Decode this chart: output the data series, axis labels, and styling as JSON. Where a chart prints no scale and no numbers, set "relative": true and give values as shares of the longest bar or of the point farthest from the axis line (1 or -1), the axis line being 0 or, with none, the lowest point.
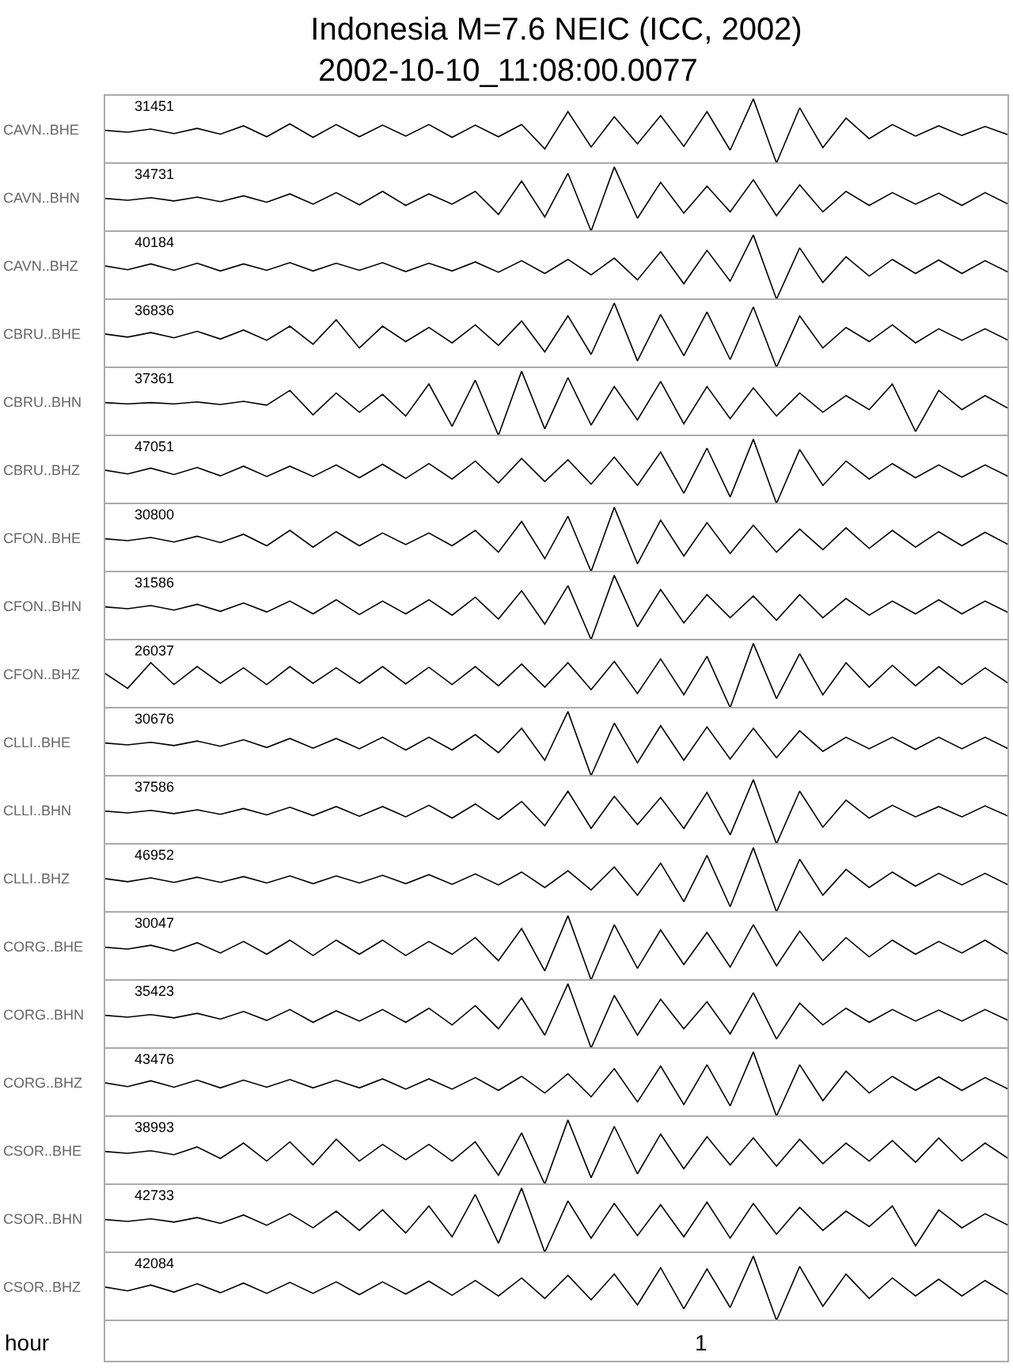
{
  "chart_data": [
    {
      "type": "line",
      "title": "Indonesia M=7.6 NEIC (ICC, 2002)",
      "subtitle": "2002-10-10_11:08:00.0077",
      "ylabel": "CAVN..BHE",
      "annotations": [
        "31451"
      ],
      "relative": true,
      "categories": [
        null,
        null,
        null,
        null,
        null,
        null,
        null,
        null,
        null,
        null,
        null,
        null,
        null,
        null,
        null,
        null,
        null,
        null,
        null,
        null,
        null,
        null,
        null,
        null,
        null,
        null,
        null,
        null,
        null,
        null,
        null,
        null,
        null,
        null,
        null,
        null,
        null,
        null,
        null,
        null
      ],
      "series": [
        {
          "color": "#000000",
          "values": [
            0.51,
            0.48,
            0.53,
            0.46,
            0.54,
            0.45,
            0.58,
            0.41,
            0.61,
            0.4,
            0.6,
            0.41,
            0.59,
            0.42,
            0.6,
            0.4,
            0.59,
            0.41,
            0.6,
            0.22,
            0.8,
            0.25,
            0.72,
            0.3,
            0.74,
            0.26,
            0.8,
            0.2,
            1,
            0,
            0.86,
            0.24,
            0.7,
            0.38,
            0.6,
            0.42,
            0.58,
            0.43,
            0.57,
            0.44
          ]
        }
      ]
    },
    {
      "type": "line",
      "ylabel": "CAVN..BHN",
      "annotations": [
        "34731"
      ],
      "relative": true,
      "categories": [
        null,
        null,
        null,
        null,
        null,
        null,
        null,
        null,
        null,
        null,
        null,
        null,
        null,
        null,
        null,
        null,
        null,
        null,
        null,
        null,
        null,
        null,
        null,
        null,
        null,
        null,
        null,
        null,
        null,
        null,
        null,
        null,
        null,
        null,
        null,
        null,
        null,
        null,
        null,
        null
      ],
      "series": [
        {
          "color": "#000000",
          "values": [
            0.51,
            0.48,
            0.52,
            0.47,
            0.53,
            0.46,
            0.55,
            0.45,
            0.58,
            0.42,
            0.6,
            0.41,
            0.62,
            0.4,
            0.58,
            0.42,
            0.62,
            0.26,
            0.78,
            0.22,
            0.9,
            0,
            1,
            0.2,
            0.76,
            0.28,
            0.7,
            0.3,
            0.8,
            0.24,
            0.72,
            0.3,
            0.62,
            0.4,
            0.6,
            0.42,
            0.59,
            0.4,
            0.6,
            0.42
          ]
        }
      ]
    },
    {
      "type": "line",
      "ylabel": "CAVN..BHZ",
      "annotations": [
        "40184"
      ],
      "relative": true,
      "categories": [
        null,
        null,
        null,
        null,
        null,
        null,
        null,
        null,
        null,
        null,
        null,
        null,
        null,
        null,
        null,
        null,
        null,
        null,
        null,
        null,
        null,
        null,
        null,
        null,
        null,
        null,
        null,
        null,
        null,
        null,
        null,
        null,
        null,
        null,
        null,
        null,
        null,
        null,
        null,
        null
      ],
      "series": [
        {
          "color": "#000000",
          "values": [
            0.52,
            0.46,
            0.55,
            0.45,
            0.56,
            0.44,
            0.55,
            0.45,
            0.57,
            0.44,
            0.56,
            0.45,
            0.57,
            0.43,
            0.56,
            0.44,
            0.58,
            0.42,
            0.6,
            0.4,
            0.62,
            0.38,
            0.64,
            0.3,
            0.74,
            0.24,
            0.76,
            0.28,
            1,
            0,
            0.8,
            0.26,
            0.66,
            0.36,
            0.62,
            0.4,
            0.61,
            0.4,
            0.6,
            0.42
          ]
        }
      ]
    },
    {
      "type": "line",
      "ylabel": "CBRU..BHE",
      "annotations": [
        "36836"
      ],
      "relative": true,
      "categories": [
        null,
        null,
        null,
        null,
        null,
        null,
        null,
        null,
        null,
        null,
        null,
        null,
        null,
        null,
        null,
        null,
        null,
        null,
        null,
        null,
        null,
        null,
        null,
        null,
        null,
        null,
        null,
        null,
        null,
        null,
        null,
        null,
        null,
        null,
        null,
        null,
        null,
        null,
        null,
        null
      ],
      "series": [
        {
          "color": "#000000",
          "values": [
            0.52,
            0.47,
            0.54,
            0.46,
            0.56,
            0.44,
            0.58,
            0.42,
            0.64,
            0.36,
            0.74,
            0.3,
            0.64,
            0.4,
            0.62,
            0.38,
            0.66,
            0.34,
            0.72,
            0.24,
            0.8,
            0.2,
            1,
            0.1,
            0.82,
            0.18,
            0.86,
            0.12,
            0.94,
            0,
            0.8,
            0.3,
            0.62,
            0.4,
            0.66,
            0.38,
            0.6,
            0.42,
            0.6,
            0.42
          ]
        }
      ]
    },
    {
      "type": "line",
      "ylabel": "CBRU..BHN",
      "annotations": [
        "37361"
      ],
      "relative": true,
      "categories": [
        null,
        null,
        null,
        null,
        null,
        null,
        null,
        null,
        null,
        null,
        null,
        null,
        null,
        null,
        null,
        null,
        null,
        null,
        null,
        null,
        null,
        null,
        null,
        null,
        null,
        null,
        null,
        null,
        null,
        null,
        null,
        null,
        null,
        null,
        null,
        null,
        null,
        null,
        null,
        null
      ],
      "series": [
        {
          "color": "#000000",
          "values": [
            0.51,
            0.49,
            0.51,
            0.49,
            0.52,
            0.48,
            0.53,
            0.47,
            0.7,
            0.32,
            0.66,
            0.36,
            0.64,
            0.3,
            0.8,
            0.14,
            0.86,
            0,
            1,
            0.1,
            0.9,
            0.16,
            0.76,
            0.24,
            0.84,
            0.18,
            0.76,
            0.26,
            0.74,
            0.3,
            0.66,
            0.36,
            0.62,
            0.4,
            0.8,
            0.06,
            0.7,
            0.4,
            0.62,
            0.42
          ]
        }
      ]
    },
    {
      "type": "line",
      "ylabel": "CBRU..BHZ",
      "annotations": [
        "47051"
      ],
      "relative": true,
      "categories": [
        null,
        null,
        null,
        null,
        null,
        null,
        null,
        null,
        null,
        null,
        null,
        null,
        null,
        null,
        null,
        null,
        null,
        null,
        null,
        null,
        null,
        null,
        null,
        null,
        null,
        null,
        null,
        null,
        null,
        null,
        null,
        null,
        null,
        null,
        null,
        null,
        null,
        null,
        null,
        null
      ],
      "series": [
        {
          "color": "#000000",
          "values": [
            0.52,
            0.46,
            0.55,
            0.45,
            0.56,
            0.43,
            0.58,
            0.42,
            0.58,
            0.42,
            0.6,
            0.4,
            0.61,
            0.39,
            0.62,
            0.38,
            0.66,
            0.32,
            0.7,
            0.34,
            0.68,
            0.3,
            0.72,
            0.28,
            0.8,
            0.16,
            0.86,
            0.1,
            1,
            0,
            0.84,
            0.28,
            0.66,
            0.38,
            0.62,
            0.4,
            0.6,
            0.41,
            0.6,
            0.42
          ]
        }
      ]
    },
    {
      "type": "line",
      "ylabel": "CFON..BHE",
      "annotations": [
        "30800"
      ],
      "relative": true,
      "categories": [
        null,
        null,
        null,
        null,
        null,
        null,
        null,
        null,
        null,
        null,
        null,
        null,
        null,
        null,
        null,
        null,
        null,
        null,
        null,
        null,
        null,
        null,
        null,
        null,
        null,
        null,
        null,
        null,
        null,
        null,
        null,
        null,
        null,
        null,
        null,
        null,
        null,
        null,
        null,
        null
      ],
      "series": [
        {
          "color": "#000000",
          "values": [
            0.51,
            0.48,
            0.53,
            0.46,
            0.55,
            0.45,
            0.58,
            0.4,
            0.64,
            0.38,
            0.62,
            0.4,
            0.6,
            0.42,
            0.6,
            0.4,
            0.64,
            0.3,
            0.78,
            0.2,
            0.86,
            0,
            1,
            0.12,
            0.8,
            0.24,
            0.76,
            0.28,
            0.72,
            0.3,
            0.66,
            0.34,
            0.68,
            0.36,
            0.64,
            0.38,
            0.62,
            0.4,
            0.61,
            0.42
          ]
        }
      ]
    },
    {
      "type": "line",
      "ylabel": "CFON..BHN",
      "annotations": [
        "31586"
      ],
      "relative": true,
      "categories": [
        null,
        null,
        null,
        null,
        null,
        null,
        null,
        null,
        null,
        null,
        null,
        null,
        null,
        null,
        null,
        null,
        null,
        null,
        null,
        null,
        null,
        null,
        null,
        null,
        null,
        null,
        null,
        null,
        null,
        null,
        null,
        null,
        null,
        null,
        null,
        null,
        null,
        null,
        null,
        null
      ],
      "series": [
        {
          "color": "#000000",
          "values": [
            0.51,
            0.48,
            0.53,
            0.46,
            0.55,
            0.44,
            0.57,
            0.43,
            0.6,
            0.4,
            0.62,
            0.39,
            0.6,
            0.4,
            0.62,
            0.38,
            0.66,
            0.32,
            0.76,
            0.24,
            0.84,
            0,
            1,
            0.2,
            0.78,
            0.26,
            0.7,
            0.34,
            0.68,
            0.3,
            0.7,
            0.34,
            0.64,
            0.38,
            0.6,
            0.4,
            0.62,
            0.4,
            0.6,
            0.42
          ]
        }
      ]
    },
    {
      "type": "line",
      "ylabel": "CFON..BHZ",
      "annotations": [
        "26037"
      ],
      "relative": true,
      "categories": [
        null,
        null,
        null,
        null,
        null,
        null,
        null,
        null,
        null,
        null,
        null,
        null,
        null,
        null,
        null,
        null,
        null,
        null,
        null,
        null,
        null,
        null,
        null,
        null,
        null,
        null,
        null,
        null,
        null,
        null,
        null,
        null,
        null,
        null,
        null,
        null,
        null,
        null,
        null,
        null
      ],
      "series": [
        {
          "color": "#000000",
          "values": [
            0.54,
            0.3,
            0.7,
            0.36,
            0.64,
            0.38,
            0.62,
            0.36,
            0.64,
            0.38,
            0.62,
            0.38,
            0.64,
            0.37,
            0.63,
            0.36,
            0.64,
            0.34,
            0.68,
            0.32,
            0.7,
            0.28,
            0.72,
            0.22,
            0.76,
            0.2,
            0.8,
            0,
            1,
            0.14,
            0.84,
            0.2,
            0.7,
            0.32,
            0.66,
            0.34,
            0.64,
            0.36,
            0.62,
            0.38
          ]
        }
      ]
    },
    {
      "type": "line",
      "ylabel": "CLLI..BHE",
      "annotations": [
        "30676"
      ],
      "relative": true,
      "categories": [
        null,
        null,
        null,
        null,
        null,
        null,
        null,
        null,
        null,
        null,
        null,
        null,
        null,
        null,
        null,
        null,
        null,
        null,
        null,
        null,
        null,
        null,
        null,
        null,
        null,
        null,
        null,
        null,
        null,
        null,
        null,
        null,
        null,
        null,
        null,
        null,
        null,
        null,
        null,
        null
      ],
      "series": [
        {
          "color": "#000000",
          "values": [
            0.51,
            0.48,
            0.52,
            0.47,
            0.54,
            0.46,
            0.56,
            0.44,
            0.58,
            0.43,
            0.58,
            0.42,
            0.6,
            0.4,
            0.6,
            0.4,
            0.64,
            0.36,
            0.74,
            0.24,
            1,
            0,
            0.82,
            0.2,
            0.78,
            0.24,
            0.76,
            0.26,
            0.74,
            0.28,
            0.7,
            0.38,
            0.6,
            0.42,
            0.6,
            0.41,
            0.6,
            0.42,
            0.6,
            0.42
          ]
        }
      ]
    },
    {
      "type": "line",
      "ylabel": "CLLI..BHN",
      "annotations": [
        "37586"
      ],
      "relative": true,
      "categories": [
        null,
        null,
        null,
        null,
        null,
        null,
        null,
        null,
        null,
        null,
        null,
        null,
        null,
        null,
        null,
        null,
        null,
        null,
        null,
        null,
        null,
        null,
        null,
        null,
        null,
        null,
        null,
        null,
        null,
        null,
        null,
        null,
        null,
        null,
        null,
        null,
        null,
        null,
        null,
        null
      ],
      "series": [
        {
          "color": "#000000",
          "values": [
            0.51,
            0.48,
            0.52,
            0.47,
            0.53,
            0.46,
            0.55,
            0.45,
            0.57,
            0.44,
            0.58,
            0.43,
            0.58,
            0.42,
            0.6,
            0.4,
            0.62,
            0.38,
            0.66,
            0.28,
            0.82,
            0.24,
            0.74,
            0.3,
            0.72,
            0.24,
            0.8,
            0.14,
            1,
            0,
            0.82,
            0.26,
            0.68,
            0.4,
            0.6,
            0.42,
            0.58,
            0.42,
            0.59,
            0.43
          ]
        }
      ]
    },
    {
      "type": "line",
      "ylabel": "CLLI..BHZ",
      "annotations": [
        "46952"
      ],
      "relative": true,
      "categories": [
        null,
        null,
        null,
        null,
        null,
        null,
        null,
        null,
        null,
        null,
        null,
        null,
        null,
        null,
        null,
        null,
        null,
        null,
        null,
        null,
        null,
        null,
        null,
        null,
        null,
        null,
        null,
        null,
        null,
        null,
        null,
        null,
        null,
        null,
        null,
        null,
        null,
        null,
        null,
        null
      ],
      "series": [
        {
          "color": "#000000",
          "values": [
            0.52,
            0.47,
            0.53,
            0.46,
            0.54,
            0.46,
            0.55,
            0.45,
            0.56,
            0.44,
            0.56,
            0.45,
            0.57,
            0.44,
            0.58,
            0.43,
            0.59,
            0.42,
            0.62,
            0.38,
            0.64,
            0.34,
            0.7,
            0.26,
            0.76,
            0.16,
            0.88,
            0.08,
            1,
            0,
            0.82,
            0.26,
            0.66,
            0.38,
            0.62,
            0.4,
            0.6,
            0.42,
            0.6,
            0.42
          ]
        }
      ]
    },
    {
      "type": "line",
      "ylabel": "CORG..BHE",
      "annotations": [
        "30047"
      ],
      "relative": true,
      "categories": [
        null,
        null,
        null,
        null,
        null,
        null,
        null,
        null,
        null,
        null,
        null,
        null,
        null,
        null,
        null,
        null,
        null,
        null,
        null,
        null,
        null,
        null,
        null,
        null,
        null,
        null,
        null,
        null,
        null,
        null,
        null,
        null,
        null,
        null,
        null,
        null,
        null,
        null,
        null,
        null
      ],
      "series": [
        {
          "color": "#000000",
          "values": [
            0.51,
            0.48,
            0.54,
            0.45,
            0.58,
            0.42,
            0.6,
            0.4,
            0.62,
            0.38,
            0.62,
            0.4,
            0.62,
            0.38,
            0.6,
            0.4,
            0.66,
            0.3,
            0.8,
            0.14,
            1,
            0,
            0.86,
            0.18,
            0.78,
            0.24,
            0.74,
            0.2,
            0.86,
            0.22,
            0.76,
            0.3,
            0.66,
            0.36,
            0.62,
            0.4,
            0.6,
            0.42,
            0.62,
            0.4
          ]
        }
      ]
    },
    {
      "type": "line",
      "ylabel": "CORG..BHN",
      "annotations": [
        "35423"
      ],
      "relative": true,
      "categories": [
        null,
        null,
        null,
        null,
        null,
        null,
        null,
        null,
        null,
        null,
        null,
        null,
        null,
        null,
        null,
        null,
        null,
        null,
        null,
        null,
        null,
        null,
        null,
        null,
        null,
        null,
        null,
        null,
        null,
        null,
        null,
        null,
        null,
        null,
        null,
        null,
        null,
        null,
        null,
        null
      ],
      "series": [
        {
          "color": "#000000",
          "values": [
            0.51,
            0.48,
            0.52,
            0.47,
            0.54,
            0.45,
            0.57,
            0.43,
            0.6,
            0.4,
            0.58,
            0.42,
            0.6,
            0.4,
            0.62,
            0.36,
            0.66,
            0.3,
            0.78,
            0.2,
            1,
            0,
            0.82,
            0.2,
            0.76,
            0.3,
            0.72,
            0.22,
            0.86,
            0.14,
            0.7,
            0.36,
            0.62,
            0.4,
            0.6,
            0.42,
            0.59,
            0.42,
            0.6,
            0.43
          ]
        }
      ]
    },
    {
      "type": "line",
      "ylabel": "CORG..BHZ",
      "annotations": [
        "43476"
      ],
      "relative": true,
      "categories": [
        null,
        null,
        null,
        null,
        null,
        null,
        null,
        null,
        null,
        null,
        null,
        null,
        null,
        null,
        null,
        null,
        null,
        null,
        null,
        null,
        null,
        null,
        null,
        null,
        null,
        null,
        null,
        null,
        null,
        null,
        null,
        null,
        null,
        null,
        null,
        null,
        null,
        null,
        null,
        null
      ],
      "series": [
        {
          "color": "#000000",
          "values": [
            0.52,
            0.46,
            0.55,
            0.45,
            0.56,
            0.44,
            0.56,
            0.45,
            0.57,
            0.44,
            0.56,
            0.44,
            0.58,
            0.42,
            0.58,
            0.42,
            0.6,
            0.4,
            0.62,
            0.36,
            0.66,
            0.3,
            0.74,
            0.22,
            0.78,
            0.18,
            0.8,
            0.16,
            1,
            0,
            0.8,
            0.24,
            0.7,
            0.36,
            0.62,
            0.4,
            0.61,
            0.4,
            0.6,
            0.42
          ]
        }
      ]
    },
    {
      "type": "line",
      "ylabel": "CSOR..BHE",
      "annotations": [
        "38993"
      ],
      "relative": true,
      "categories": [
        null,
        null,
        null,
        null,
        null,
        null,
        null,
        null,
        null,
        null,
        null,
        null,
        null,
        null,
        null,
        null,
        null,
        null,
        null,
        null,
        null,
        null,
        null,
        null,
        null,
        null,
        null,
        null,
        null,
        null,
        null,
        null,
        null,
        null,
        null,
        null,
        null,
        null,
        null,
        null
      ],
      "series": [
        {
          "color": "#000000",
          "values": [
            0.51,
            0.48,
            0.52,
            0.46,
            0.58,
            0.4,
            0.64,
            0.36,
            0.66,
            0.3,
            0.7,
            0.36,
            0.62,
            0.38,
            0.62,
            0.36,
            0.66,
            0.14,
            0.8,
            0,
            1,
            0.1,
            0.9,
            0.16,
            0.78,
            0.24,
            0.74,
            0.3,
            0.72,
            0.28,
            0.7,
            0.32,
            0.64,
            0.36,
            0.68,
            0.34,
            0.72,
            0.36,
            0.64,
            0.4
          ]
        }
      ]
    },
    {
      "type": "line",
      "ylabel": "CSOR..BHN",
      "annotations": [
        "42733"
      ],
      "relative": true,
      "categories": [
        null,
        null,
        null,
        null,
        null,
        null,
        null,
        null,
        null,
        null,
        null,
        null,
        null,
        null,
        null,
        null,
        null,
        null,
        null,
        null,
        null,
        null,
        null,
        null,
        null,
        null,
        null,
        null,
        null,
        null,
        null,
        null,
        null,
        null,
        null,
        null,
        null,
        null,
        null,
        null
      ],
      "series": [
        {
          "color": "#000000",
          "values": [
            0.51,
            0.48,
            0.52,
            0.47,
            0.54,
            0.45,
            0.58,
            0.42,
            0.6,
            0.38,
            0.64,
            0.34,
            0.66,
            0.3,
            0.72,
            0.24,
            0.9,
            0.14,
            1,
            0,
            0.8,
            0.22,
            0.76,
            0.26,
            0.74,
            0.24,
            0.78,
            0.22,
            0.76,
            0.28,
            0.7,
            0.34,
            0.64,
            0.4,
            0.72,
            0.1,
            0.66,
            0.38,
            0.6,
            0.42
          ]
        }
      ]
    },
    {
      "type": "line",
      "ylabel": "CSOR..BHZ",
      "xlabel": "hour",
      "annotations": [
        "42084",
        "1"
      ],
      "relative": true,
      "categories": [
        null,
        null,
        null,
        null,
        null,
        null,
        null,
        null,
        null,
        null,
        null,
        null,
        null,
        null,
        null,
        null,
        null,
        null,
        null,
        null,
        null,
        null,
        null,
        null,
        null,
        null,
        null,
        null,
        null,
        null,
        null,
        null,
        null,
        null,
        null,
        null,
        null,
        null,
        null,
        null
      ],
      "series": [
        {
          "color": "#000000",
          "values": [
            0.52,
            0.46,
            0.55,
            0.44,
            0.57,
            0.43,
            0.58,
            0.42,
            0.59,
            0.42,
            0.6,
            0.4,
            0.6,
            0.41,
            0.61,
            0.39,
            0.62,
            0.38,
            0.66,
            0.34,
            0.7,
            0.32,
            0.72,
            0.24,
            0.82,
            0.18,
            0.8,
            0.2,
            1,
            0,
            0.84,
            0.22,
            0.72,
            0.34,
            0.66,
            0.38,
            0.64,
            0.38,
            0.62,
            0.4
          ]
        }
      ]
    }
  ]
}
